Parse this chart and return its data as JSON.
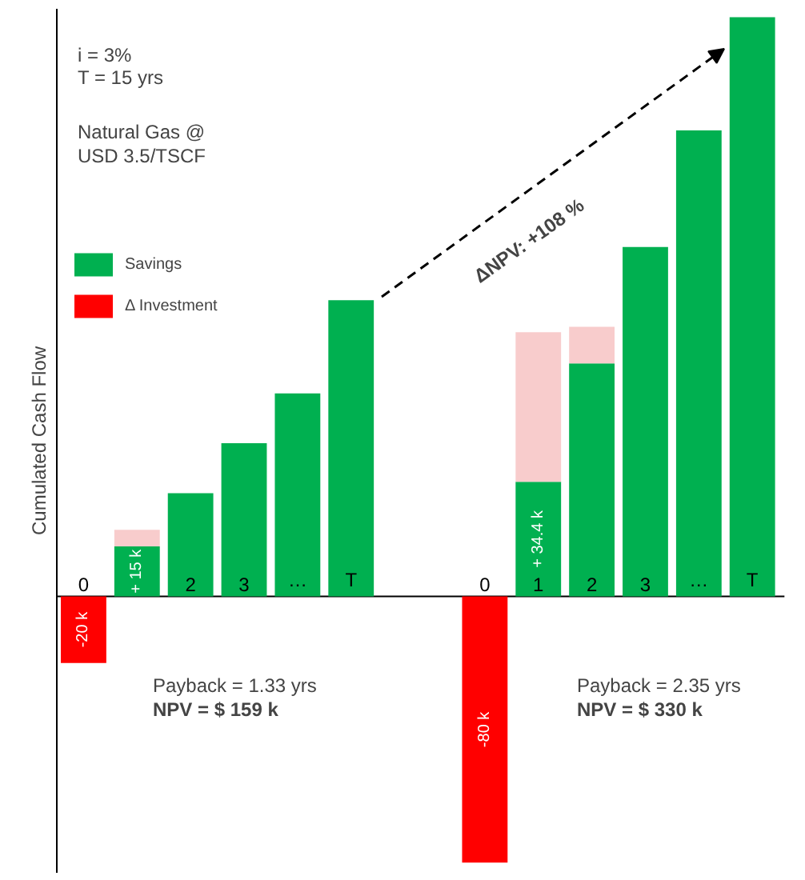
{
  "chart_data": {
    "type": "bar",
    "stacked": true,
    "ylabel": "Cumulated Cash Flow",
    "legend": "top left",
    "grid": false,
    "categories": [
      "0",
      null,
      "2",
      "3",
      "…",
      "T",
      "0",
      "1",
      "2",
      "3",
      "…",
      "T"
    ],
    "series": [
      {
        "name": "Savings",
        "color": "#00b050",
        "values": [
          null,
          15,
          31,
          46,
          61,
          89,
          null,
          34.4,
          70,
          105,
          140,
          174
        ],
        "value_labels": [
          null,
          "+ 15 k",
          null,
          null,
          null,
          null,
          null,
          "+ 34.4 k",
          null,
          null,
          null,
          null
        ]
      },
      {
        "color": "#f8cccc",
        "values": [
          null,
          5,
          null,
          null,
          null,
          null,
          null,
          45,
          11,
          null,
          null,
          null
        ]
      },
      {
        "name": "Δ Investment",
        "color": "#ff0000",
        "values": [
          -20,
          null,
          null,
          null,
          null,
          null,
          -80,
          null,
          null,
          null,
          null,
          null
        ],
        "value_labels": [
          "-20 k",
          null,
          null,
          null,
          null,
          null,
          "-80 k",
          null,
          null,
          null,
          null,
          null
        ]
      }
    ],
    "annotations": [
      "i  = 3%",
      "T = 15 yrs",
      "Natural Gas @",
      "USD 3.5/TSCF",
      "Payback = 1.33 yrs",
      "NPV = $ 159 k",
      "Payback = 2.35 yrs",
      "NPV = $ 330 k",
      "ΔNPV: +108 %"
    ]
  }
}
